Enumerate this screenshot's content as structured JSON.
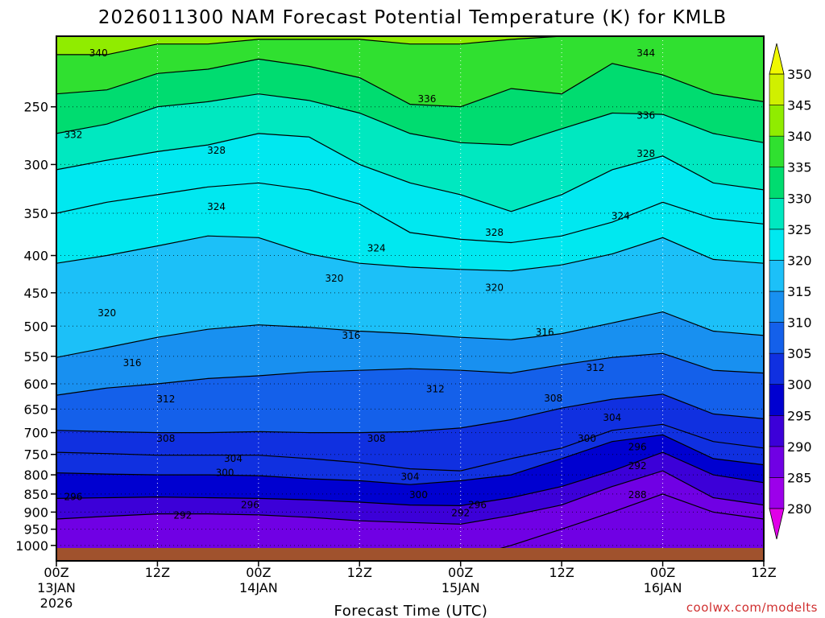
{
  "chart_data": {
    "type": "heatmap",
    "title": "2026011300 NAM Forecast Potential Temperature (K) for KMLB",
    "xlabel": "Forecast Time (UTC)",
    "ylabel": "",
    "credit": "coolwx.com/modelts",
    "x_range_hours": [
      0,
      84
    ],
    "y_scale": "log-pressure",
    "y_range_hPa": [
      1050,
      200
    ],
    "x_ticks": [
      {
        "hour": 0,
        "line1": "00Z",
        "line2": "13JAN",
        "line3": "2026"
      },
      {
        "hour": 12,
        "line1": "12Z",
        "line2": "",
        "line3": ""
      },
      {
        "hour": 24,
        "line1": "00Z",
        "line2": "14JAN",
        "line3": ""
      },
      {
        "hour": 36,
        "line1": "12Z",
        "line2": "",
        "line3": ""
      },
      {
        "hour": 48,
        "line1": "00Z",
        "line2": "15JAN",
        "line3": ""
      },
      {
        "hour": 60,
        "line1": "12Z",
        "line2": "",
        "line3": ""
      },
      {
        "hour": 72,
        "line1": "00Z",
        "line2": "16JAN",
        "line3": ""
      },
      {
        "hour": 84,
        "line1": "12Z",
        "line2": "",
        "line3": ""
      }
    ],
    "y_ticks": [
      "250",
      "300",
      "350",
      "400",
      "450",
      "500",
      "550",
      "600",
      "650",
      "700",
      "750",
      "800",
      "850",
      "900",
      "950",
      "1000"
    ],
    "colorbar": {
      "min": 280,
      "max": 350,
      "step": 5,
      "labels": [
        "350",
        "345",
        "340",
        "335",
        "330",
        "325",
        "320",
        "315",
        "310",
        "305",
        "300",
        "295",
        "290",
        "285",
        "280"
      ],
      "colors": [
        "#e000e8",
        "#9c00ea",
        "#7000e4",
        "#3c00d8",
        "#0000d0",
        "#1030e0",
        "#1460ea",
        "#1890f0",
        "#1cc0f8",
        "#00e8f0",
        "#00e8c0",
        "#00dc70",
        "#30e030",
        "#90ec00",
        "#d0f000",
        "#f0f800"
      ],
      "extend": "both"
    },
    "series": [
      {
        "level": 340,
        "label": "340",
        "x": [
          0,
          6,
          12,
          18,
          24,
          30,
          36,
          42,
          48,
          54,
          60,
          66,
          72,
          78,
          84
        ],
        "y": [
          212,
          212,
          205,
          205,
          202,
          202,
          202,
          205,
          205,
          202,
          200,
          200,
          200,
          200,
          200
        ]
      },
      {
        "level": 336,
        "label": "336",
        "x": [
          0,
          6,
          12,
          18,
          24,
          30,
          36,
          42,
          48,
          54,
          60,
          66,
          72,
          78,
          84
        ],
        "y": [
          240,
          237,
          225,
          222,
          215,
          220,
          228,
          248,
          250,
          236,
          240,
          218,
          226,
          240,
          246
        ]
      },
      {
        "level": 332,
        "label": "332",
        "x": [
          0,
          6,
          12,
          18,
          24,
          30,
          36,
          42,
          48,
          54,
          60,
          66,
          72,
          78,
          84
        ],
        "y": [
          272,
          264,
          250,
          246,
          240,
          245,
          255,
          272,
          280,
          282,
          268,
          255,
          256,
          272,
          280
        ]
      },
      {
        "level": 328,
        "label": "328",
        "x": [
          0,
          6,
          12,
          18,
          24,
          30,
          36,
          42,
          48,
          54,
          60,
          66,
          72,
          78,
          84
        ],
        "y": [
          305,
          296,
          288,
          282,
          272,
          275,
          300,
          318,
          330,
          348,
          330,
          305,
          292,
          318,
          325
        ]
      },
      {
        "level": 324,
        "label": "324",
        "x": [
          0,
          6,
          12,
          18,
          24,
          30,
          36,
          42,
          48,
          54,
          60,
          66,
          72,
          78,
          84
        ],
        "y": [
          350,
          338,
          330,
          322,
          318,
          325,
          340,
          372,
          380,
          384,
          376,
          360,
          338,
          356,
          362
        ]
      },
      {
        "level": 320,
        "label": "320",
        "x": [
          0,
          6,
          12,
          18,
          24,
          30,
          36,
          42,
          48,
          54,
          60,
          66,
          72,
          78,
          84
        ],
        "y": [
          410,
          400,
          388,
          376,
          378,
          398,
          410,
          415,
          418,
          420,
          412,
          398,
          378,
          405,
          410
        ]
      },
      {
        "level": 316,
        "label": "316",
        "x": [
          0,
          6,
          12,
          18,
          24,
          30,
          36,
          42,
          48,
          54,
          60,
          66,
          72,
          78,
          84
        ],
        "y": [
          552,
          535,
          518,
          505,
          498,
          502,
          508,
          512,
          518,
          522,
          512,
          495,
          478,
          508,
          515
        ]
      },
      {
        "level": 312,
        "label": "312",
        "x": [
          0,
          6,
          12,
          18,
          24,
          30,
          36,
          42,
          48,
          54,
          60,
          66,
          72,
          78,
          84
        ],
        "y": [
          622,
          608,
          600,
          590,
          585,
          578,
          575,
          572,
          575,
          580,
          565,
          552,
          545,
          575,
          580
        ]
      },
      {
        "level": 308,
        "label": "308",
        "x": [
          0,
          6,
          12,
          18,
          24,
          30,
          36,
          42,
          48,
          54,
          60,
          66,
          72,
          78,
          84
        ],
        "y": [
          695,
          698,
          700,
          700,
          698,
          700,
          700,
          698,
          690,
          672,
          648,
          630,
          620,
          660,
          670
        ]
      },
      {
        "level": 304,
        "label": "304",
        "x": [
          0,
          6,
          12,
          18,
          24,
          30,
          36,
          42,
          48,
          54,
          60,
          66,
          72,
          78,
          84
        ],
        "y": [
          745,
          748,
          752,
          752,
          752,
          760,
          770,
          785,
          790,
          760,
          735,
          695,
          682,
          720,
          735
        ]
      },
      {
        "level": 300,
        "label": "300",
        "x": [
          0,
          6,
          12,
          18,
          24,
          30,
          36,
          42,
          48,
          54,
          60,
          66,
          72,
          78,
          84
        ],
        "y": [
          795,
          798,
          800,
          800,
          802,
          810,
          815,
          825,
          815,
          800,
          760,
          720,
          705,
          760,
          775
        ]
      },
      {
        "level": 296,
        "label": "296",
        "x": [
          0,
          6,
          12,
          18,
          24,
          30,
          36,
          42,
          48,
          54,
          60,
          66,
          72,
          78,
          84
        ],
        "y": [
          862,
          860,
          858,
          860,
          862,
          866,
          872,
          880,
          882,
          860,
          830,
          790,
          745,
          800,
          820
        ]
      },
      {
        "level": 292,
        "label": "292",
        "x": [
          0,
          6,
          12,
          18,
          24,
          30,
          36,
          42,
          48,
          54,
          60,
          66,
          72,
          78,
          84
        ],
        "y": [
          920,
          912,
          905,
          905,
          908,
          915,
          925,
          930,
          935,
          910,
          880,
          830,
          790,
          860,
          880
        ]
      },
      {
        "level": 288,
        "label": "288",
        "x": [
          48,
          54,
          60,
          66,
          72,
          78,
          84
        ],
        "y": [
          1045,
          1000,
          950,
          900,
          850,
          900,
          920
        ]
      }
    ],
    "contour_labels": [
      {
        "text": "340",
        "hour": 5,
        "hPa": 211
      },
      {
        "text": "344",
        "hour": 70,
        "hPa": 211
      },
      {
        "text": "336",
        "hour": 44,
        "hPa": 244
      },
      {
        "text": "336",
        "hour": 70,
        "hPa": 257
      },
      {
        "text": "332",
        "hour": 2,
        "hPa": 273
      },
      {
        "text": "328",
        "hour": 19,
        "hPa": 287
      },
      {
        "text": "328",
        "hour": 70,
        "hPa": 290
      },
      {
        "text": "324",
        "hour": 19,
        "hPa": 343
      },
      {
        "text": "324",
        "hour": 67,
        "hPa": 353
      },
      {
        "text": "328",
        "hour": 52,
        "hPa": 372
      },
      {
        "text": "324",
        "hour": 38,
        "hPa": 391
      },
      {
        "text": "320",
        "hour": 33,
        "hPa": 430
      },
      {
        "text": "320",
        "hour": 52,
        "hPa": 443
      },
      {
        "text": "320",
        "hour": 6,
        "hPa": 480
      },
      {
        "text": "316",
        "hour": 35,
        "hPa": 515
      },
      {
        "text": "316",
        "hour": 58,
        "hPa": 510
      },
      {
        "text": "316",
        "hour": 9,
        "hPa": 562
      },
      {
        "text": "312",
        "hour": 64,
        "hPa": 570
      },
      {
        "text": "312",
        "hour": 45,
        "hPa": 610
      },
      {
        "text": "312",
        "hour": 13,
        "hPa": 630
      },
      {
        "text": "308",
        "hour": 59,
        "hPa": 628
      },
      {
        "text": "304",
        "hour": 66,
        "hPa": 668
      },
      {
        "text": "308",
        "hour": 13,
        "hPa": 713
      },
      {
        "text": "308",
        "hour": 38,
        "hPa": 713
      },
      {
        "text": "300",
        "hour": 63,
        "hPa": 713
      },
      {
        "text": "296",
        "hour": 69,
        "hPa": 733
      },
      {
        "text": "304",
        "hour": 21,
        "hPa": 760
      },
      {
        "text": "292",
        "hour": 69,
        "hPa": 778
      },
      {
        "text": "300",
        "hour": 20,
        "hPa": 795
      },
      {
        "text": "304",
        "hour": 42,
        "hPa": 805
      },
      {
        "text": "300",
        "hour": 43,
        "hPa": 852
      },
      {
        "text": "296",
        "hour": 2,
        "hPa": 858
      },
      {
        "text": "288",
        "hour": 69,
        "hPa": 852
      },
      {
        "text": "296",
        "hour": 23,
        "hPa": 880
      },
      {
        "text": "296",
        "hour": 50,
        "hPa": 880
      },
      {
        "text": "292",
        "hour": 15,
        "hPa": 910
      },
      {
        "text": "292",
        "hour": 48,
        "hPa": 903
      }
    ],
    "grid": true,
    "legend": "right"
  }
}
